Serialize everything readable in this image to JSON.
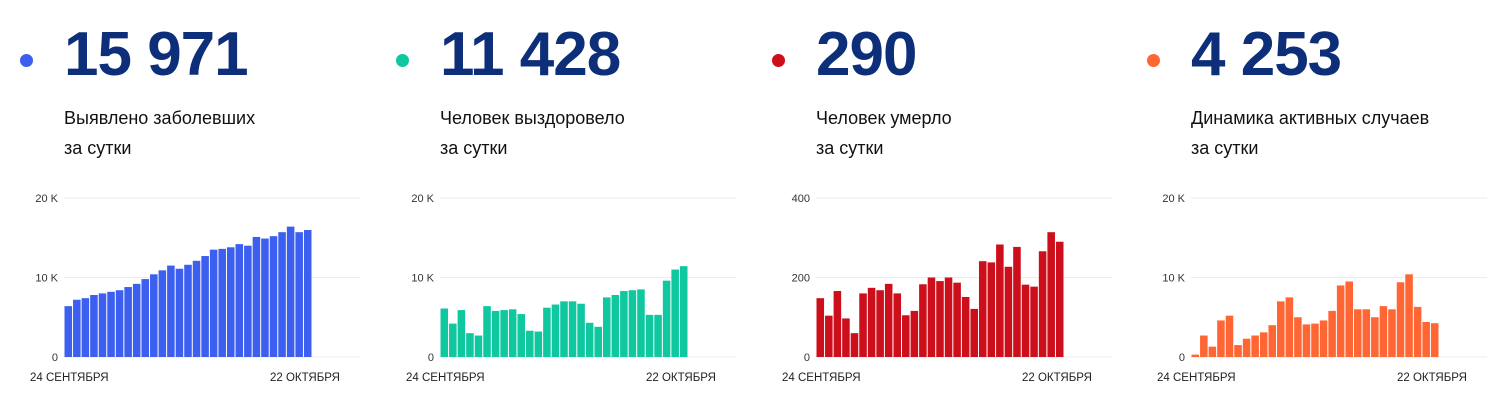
{
  "panels": [
    {
      "number": "15 971",
      "desc_line1": "Выявлено заболевших",
      "desc_line2": "за сутки",
      "color": "#3c5ff0",
      "dot_color": "#3c5ff0"
    },
    {
      "number": "11 428",
      "desc_line1": "Человек выздоровело",
      "desc_line2": "за сутки",
      "color": "#10c8a0",
      "dot_color": "#10c8a0"
    },
    {
      "number": "290",
      "desc_line1": "Человек умерло",
      "desc_line2": "за сутки",
      "color": "#cc0f1a",
      "dot_color": "#cc0f1a"
    },
    {
      "number": "4 253",
      "desc_line1": "Динамика активных случаев",
      "desc_line2": "за сутки",
      "color": "#ff6633",
      "dot_color": "#ff6633"
    }
  ],
  "chart_data": [
    {
      "type": "bar",
      "title": "",
      "x_start_label": "24 СЕНТЯБРЯ",
      "x_end_label": "22 ОКТЯБРЯ",
      "yticks": [
        0,
        10000,
        20000
      ],
      "ytick_labels": [
        "0",
        "10 K",
        "20 K"
      ],
      "ylim": [
        0,
        20000
      ],
      "values": [
        6400,
        7200,
        7400,
        7800,
        8000,
        8200,
        8400,
        8800,
        9200,
        9800,
        10400,
        10900,
        11500,
        11100,
        11600,
        12100,
        12700,
        13500,
        13600,
        13800,
        14200,
        14000,
        15100,
        14900,
        15200,
        15700,
        16400,
        15700,
        15971
      ]
    },
    {
      "type": "bar",
      "title": "",
      "x_start_label": "24 СЕНТЯБРЯ",
      "x_end_label": "22 ОКТЯБРЯ",
      "yticks": [
        0,
        10000,
        20000
      ],
      "ytick_labels": [
        "0",
        "10 K",
        "20 K"
      ],
      "ylim": [
        0,
        20000
      ],
      "values": [
        6100,
        4200,
        5900,
        3000,
        2700,
        6400,
        5800,
        5900,
        6000,
        5400,
        3300,
        3200,
        6200,
        6600,
        7000,
        7000,
        6700,
        4300,
        3800,
        7500,
        7800,
        8300,
        8400,
        8500,
        5300,
        5300,
        9600,
        11000,
        11428
      ]
    },
    {
      "type": "bar",
      "title": "",
      "x_start_label": "24 СЕНТЯБРЯ",
      "x_end_label": "22 ОКТЯБРЯ",
      "yticks": [
        0,
        200,
        400
      ],
      "ytick_labels": [
        "0",
        "200",
        "400"
      ],
      "ylim": [
        0,
        400
      ],
      "values": [
        148,
        104,
        166,
        97,
        60,
        160,
        174,
        168,
        184,
        160,
        105,
        116,
        183,
        200,
        191,
        200,
        187,
        151,
        121,
        241,
        238,
        283,
        227,
        277,
        182,
        177,
        266,
        314,
        290
      ]
    },
    {
      "type": "bar",
      "title": "",
      "x_start_label": "24 СЕНТЯБРЯ",
      "x_end_label": "22 ОКТЯБРЯ",
      "yticks": [
        0,
        10000,
        20000
      ],
      "ytick_labels": [
        "0",
        "10 K",
        "20 K"
      ],
      "ylim": [
        0,
        20000
      ],
      "values": [
        300,
        2700,
        1300,
        4600,
        5200,
        1500,
        2300,
        2700,
        3100,
        4000,
        7000,
        7500,
        5000,
        4100,
        4200,
        4600,
        5800,
        9000,
        9500,
        6000,
        6000,
        5000,
        6400,
        6000,
        9400,
        10400,
        6300,
        4400,
        4253
      ]
    }
  ]
}
